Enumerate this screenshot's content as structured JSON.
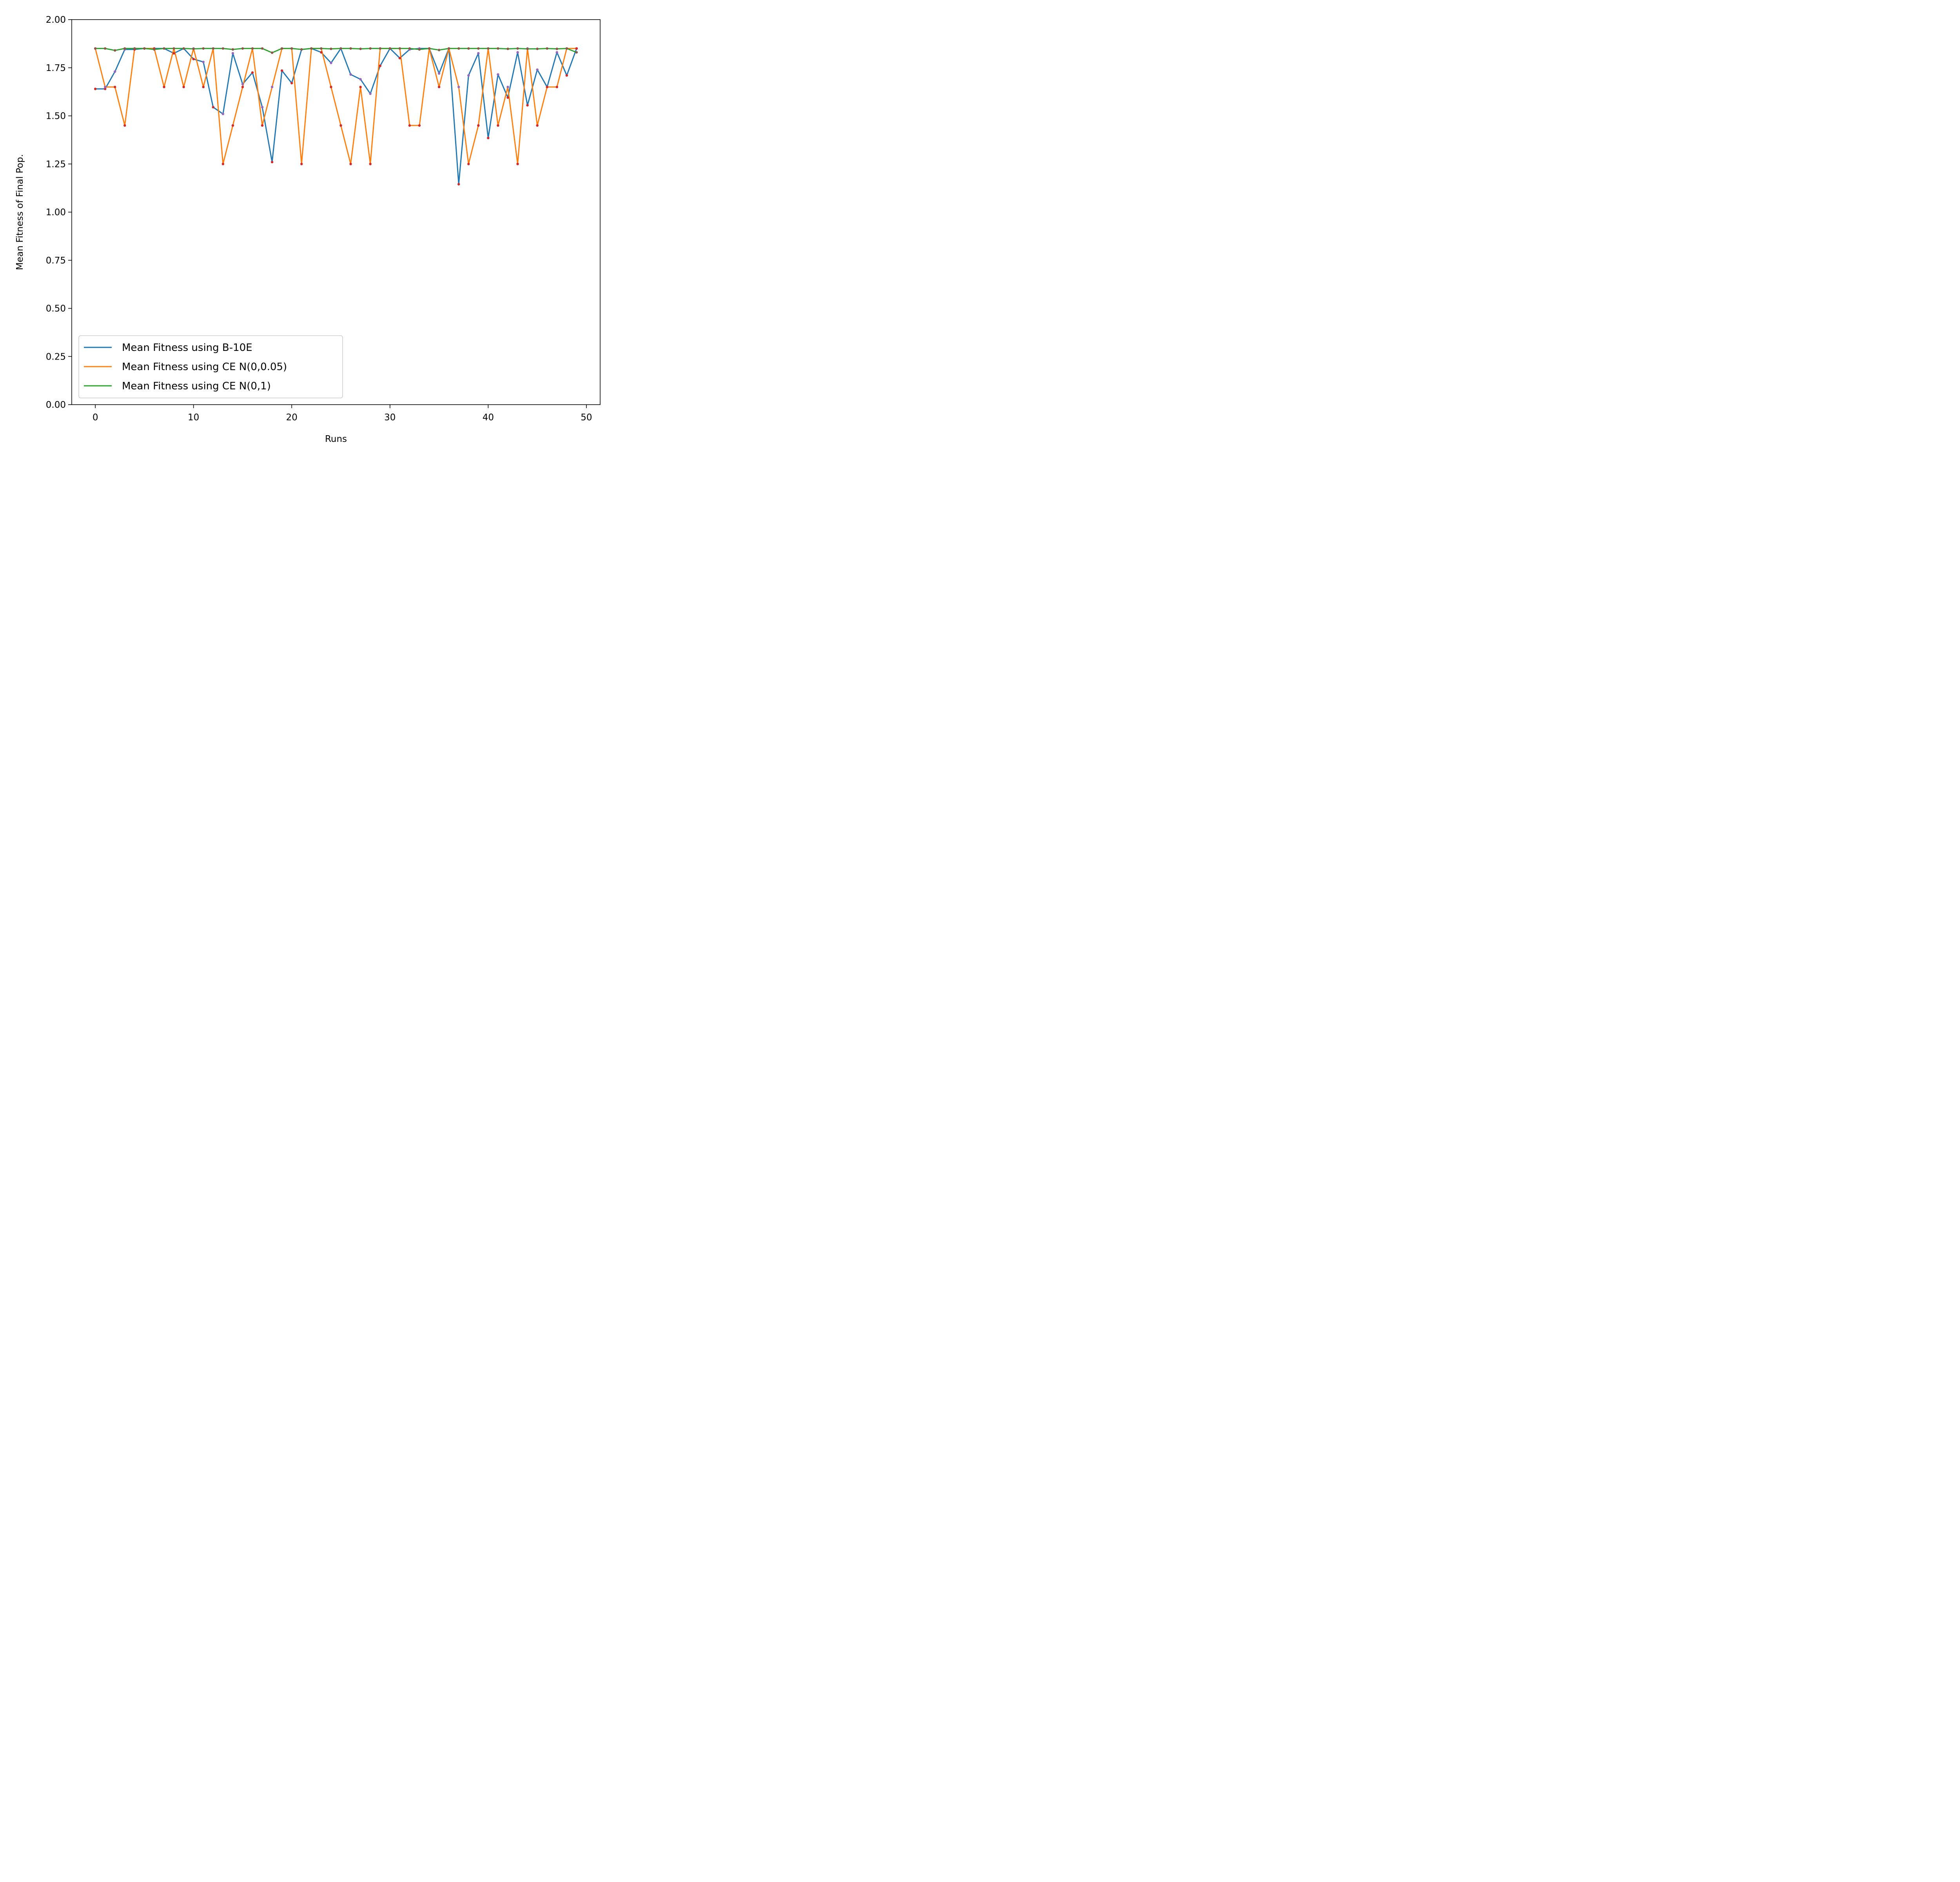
{
  "chart_data": {
    "type": "line",
    "title": "",
    "xlabel": "Runs",
    "ylabel": "Mean Fitness of Final Pop.",
    "xlim": [
      -2.4,
      51.4
    ],
    "ylim": [
      0,
      2.0
    ],
    "xticks": [
      0,
      10,
      20,
      30,
      40,
      50
    ],
    "xtick_labels": [
      "0",
      "10",
      "20",
      "30",
      "40",
      "50"
    ],
    "yticks": [
      0,
      0.25,
      0.5,
      0.75,
      1.0,
      1.25,
      1.5,
      1.75,
      2.0
    ],
    "ytick_labels": [
      "0.00",
      "0.25",
      "0.50",
      "0.75",
      "1.00",
      "1.25",
      "1.50",
      "1.75",
      "2.00"
    ],
    "grid": false,
    "legend_position": "lower-left",
    "marker_colors": {
      "min": "#d62728",
      "max": "#9467bd"
    },
    "x": [
      0,
      1,
      2,
      3,
      4,
      5,
      6,
      7,
      8,
      9,
      10,
      11,
      12,
      13,
      14,
      15,
      16,
      17,
      18,
      19,
      20,
      21,
      22,
      23,
      24,
      25,
      26,
      27,
      28,
      29,
      30,
      31,
      32,
      33,
      34,
      35,
      36,
      37,
      38,
      39,
      40,
      41,
      42,
      43,
      44,
      45,
      46,
      47,
      48,
      49
    ],
    "series": [
      {
        "name": "Mean Fitness using B-10E",
        "color": "#1f77b4",
        "values": [
          1.64,
          1.64,
          1.73,
          1.845,
          1.845,
          1.85,
          1.85,
          1.85,
          1.825,
          1.85,
          1.795,
          1.78,
          1.545,
          1.51,
          1.825,
          1.665,
          1.725,
          1.545,
          1.26,
          1.735,
          1.67,
          1.845,
          1.85,
          1.83,
          1.775,
          1.85,
          1.715,
          1.69,
          1.615,
          1.76,
          1.85,
          1.8,
          1.845,
          1.85,
          1.85,
          1.72,
          1.85,
          1.145,
          1.71,
          1.825,
          1.385,
          1.715,
          1.595,
          1.83,
          1.555,
          1.74,
          1.65,
          1.83,
          1.71,
          1.85
        ]
      },
      {
        "name": "Mean Fitness using CE N(0,0.05)",
        "color": "#ff7f0e",
        "values": [
          1.85,
          1.65,
          1.65,
          1.45,
          1.85,
          1.85,
          1.85,
          1.65,
          1.85,
          1.65,
          1.85,
          1.65,
          1.85,
          1.25,
          1.45,
          1.65,
          1.85,
          1.45,
          1.65,
          1.85,
          1.85,
          1.25,
          1.85,
          1.85,
          1.65,
          1.45,
          1.25,
          1.65,
          1.25,
          1.85,
          1.85,
          1.85,
          1.45,
          1.45,
          1.85,
          1.65,
          1.85,
          1.65,
          1.25,
          1.45,
          1.85,
          1.45,
          1.65,
          1.25,
          1.85,
          1.45,
          1.65,
          1.65,
          1.85,
          1.85
        ]
      },
      {
        "name": "Mean Fitness using CE N(0,1)",
        "color": "#2ca02c",
        "values": [
          1.85,
          1.85,
          1.84,
          1.85,
          1.85,
          1.85,
          1.845,
          1.85,
          1.85,
          1.85,
          1.848,
          1.85,
          1.85,
          1.85,
          1.845,
          1.85,
          1.85,
          1.85,
          1.828,
          1.85,
          1.85,
          1.845,
          1.85,
          1.85,
          1.848,
          1.85,
          1.85,
          1.848,
          1.85,
          1.85,
          1.85,
          1.85,
          1.85,
          1.845,
          1.85,
          1.842,
          1.85,
          1.85,
          1.85,
          1.85,
          1.85,
          1.85,
          1.848,
          1.85,
          1.848,
          1.848,
          1.85,
          1.848,
          1.85,
          1.83
        ]
      }
    ]
  }
}
